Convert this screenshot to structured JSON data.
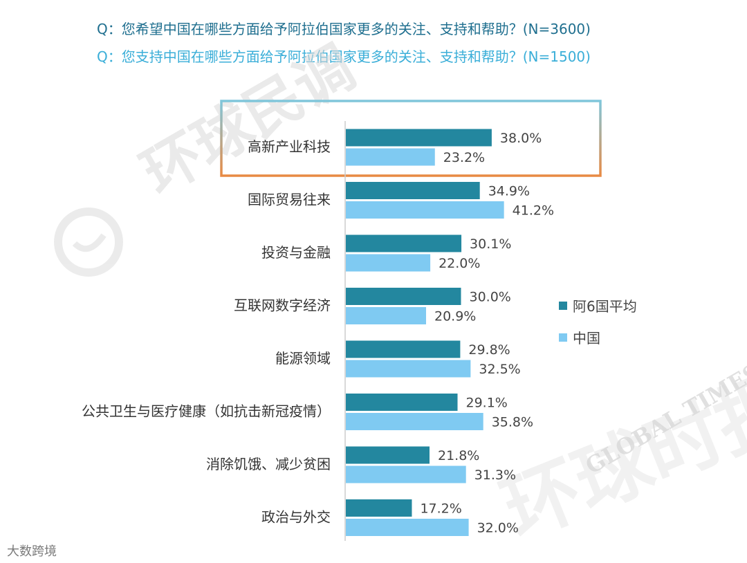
{
  "questions": {
    "q1": "Q：您希望中国在哪些方面给予阿拉伯国家更多的关注、支持和帮助？(N=3600)",
    "q2": "Q：您支持中国在哪些方面给予阿拉伯国家更多的关注、支持和帮助？(N=1500)"
  },
  "watermarks": {
    "main": "环球民调",
    "script": "环球时报",
    "global_times": "GLOBAL TIMES"
  },
  "corner_mark": "大数跨境",
  "colors": {
    "arab6": "#23879f",
    "china": "#7fcaf2",
    "highlight_top": "#7fc6db",
    "highlight_bottom": "#e88a43",
    "axis": "#cccccc"
  },
  "chart_data": {
    "type": "bar",
    "orientation": "horizontal",
    "categories": [
      "高新产业科技",
      "国际贸易往来",
      "投资与金融",
      "互联网数字经济",
      "能源领域",
      "公共卫生与医疗健康（如抗击新冠疫情）",
      "消除饥饿、减少贫困",
      "政治与外交"
    ],
    "series": [
      {
        "name": "阿6国平均",
        "values": [
          38.0,
          34.9,
          30.1,
          30.0,
          29.8,
          29.1,
          21.8,
          17.2
        ],
        "labels": [
          "38.0%",
          "34.9%",
          "30.1%",
          "30.0%",
          "29.8%",
          "29.1%",
          "21.8%",
          "17.2%"
        ]
      },
      {
        "name": "中国",
        "values": [
          23.2,
          41.2,
          22.0,
          20.9,
          32.5,
          35.8,
          31.3,
          32.0
        ],
        "labels": [
          "23.2%",
          "41.2%",
          "22.0%",
          "20.9%",
          "32.5%",
          "35.8%",
          "31.3%",
          "32.0%"
        ]
      }
    ],
    "xlim": [
      0,
      50
    ],
    "legend_position": "right",
    "highlighted_category": "高新产业科技"
  }
}
